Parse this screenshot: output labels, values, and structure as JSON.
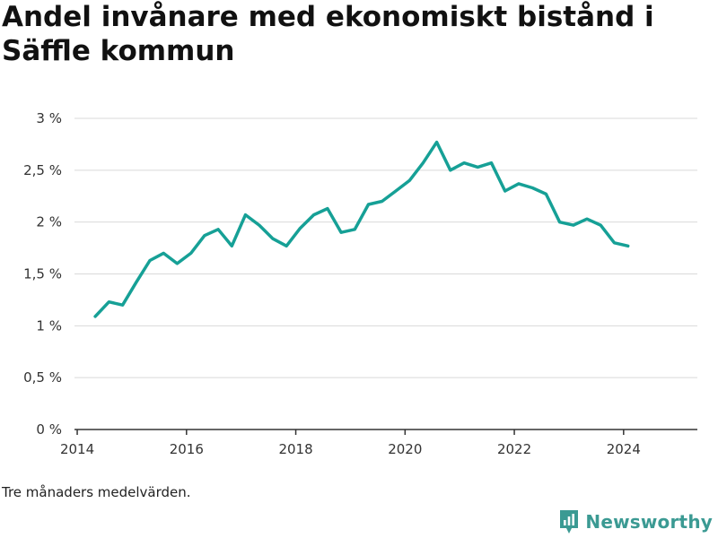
{
  "colors": {
    "series": "#16a096",
    "brand": "#3b9a93"
  },
  "icons": [
    "newsworthy-logo-icon"
  ],
  "chart_data": {
    "type": "line",
    "title": "Andel invånare med ekonomiskt bistånd i Säffle kommun",
    "xlabel": "",
    "ylabel": "",
    "xlim": [
      2013.95,
      2025.35
    ],
    "ylim": [
      0,
      3
    ],
    "xticks": [
      2014,
      2016,
      2018,
      2020,
      2022,
      2024
    ],
    "xtick_labels": [
      "2014",
      "2016",
      "2018",
      "2020",
      "2022",
      "2024"
    ],
    "yticks": [
      0,
      0.5,
      1,
      1.5,
      2,
      2.5,
      3
    ],
    "ytick_labels": [
      "0 %",
      "0,5 %",
      "1 %",
      "1,5 %",
      "2 %",
      "2,5 %",
      "3 %"
    ],
    "grid": true,
    "series": [
      {
        "name": "",
        "x": [
          2014.33,
          2014.58,
          2014.83,
          2015.08,
          2015.33,
          2015.58,
          2015.83,
          2016.08,
          2016.33,
          2016.58,
          2016.83,
          2017.08,
          2017.33,
          2017.58,
          2017.83,
          2018.08,
          2018.33,
          2018.58,
          2018.83,
          2019.08,
          2019.33,
          2019.58,
          2019.83,
          2020.08,
          2020.33,
          2020.58,
          2020.83,
          2021.08,
          2021.33,
          2021.58,
          2021.83,
          2022.08,
          2022.33,
          2022.58,
          2022.83,
          2023.08,
          2023.33,
          2023.58,
          2023.83,
          2024.08
        ],
        "y": [
          1.09,
          1.23,
          1.2,
          1.42,
          1.63,
          1.7,
          1.6,
          1.7,
          1.87,
          1.93,
          1.77,
          2.07,
          1.97,
          1.84,
          1.77,
          1.94,
          2.07,
          2.13,
          1.9,
          1.93,
          2.17,
          2.2,
          2.3,
          2.4,
          2.57,
          2.77,
          2.5,
          2.57,
          2.53,
          2.57,
          2.3,
          2.37,
          2.33,
          2.27,
          2.0,
          1.97,
          2.03,
          1.97,
          1.8,
          1.77
        ]
      }
    ]
  },
  "caption": "Tre månaders medelvärden.",
  "brand": {
    "name": "Newsworthy"
  }
}
